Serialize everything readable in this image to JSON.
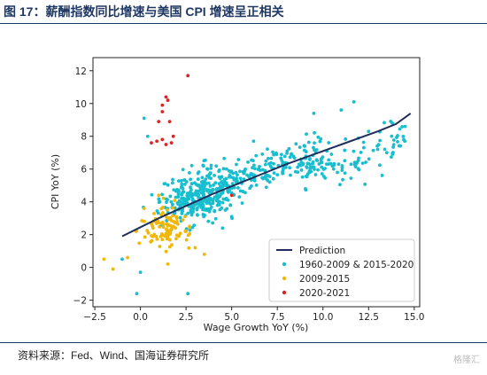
{
  "figure": {
    "title": "图 17：薪酬指数同比增速与美国 CPI 增速呈正相关",
    "source": "资料来源：Fed、Wind、国海证券研究所",
    "watermark": "格隆汇"
  },
  "chart_data": {
    "type": "scatter",
    "xlabel": "Wage Growth YoY (%)",
    "ylabel": "CPI YoY (%)",
    "xlim": [
      -2.6,
      15.3
    ],
    "ylim": [
      -2.4,
      12.8
    ],
    "xticks": [
      "−2.5",
      "0.0",
      "2.5",
      "5.0",
      "7.5",
      "10.0",
      "12.5",
      "15.0"
    ],
    "yticks": [
      "−2",
      "0",
      "2",
      "4",
      "6",
      "8",
      "10",
      "12"
    ],
    "grid": false,
    "legend_position": "lower-right",
    "prediction": {
      "name": "Prediction",
      "color": "#1f2e5a",
      "x": [
        -1.0,
        0.0,
        1.0,
        2.0,
        3.0,
        4.0,
        5.0,
        6.0,
        7.0,
        8.0,
        9.0,
        10.0,
        11.0,
        12.0,
        13.0,
        14.0,
        14.8
      ],
      "y": [
        1.9,
        2.45,
        3.0,
        3.5,
        4.0,
        4.5,
        4.95,
        5.4,
        5.85,
        6.3,
        6.7,
        7.1,
        7.5,
        7.9,
        8.3,
        8.75,
        9.4
      ]
    },
    "series": [
      {
        "name": "1960-2009 & 2015-2020",
        "color": "#17becf",
        "count": 620,
        "region_points": [
          [
            0.2,
            9.1
          ],
          [
            0.4,
            8.0
          ],
          [
            1.3,
            5.1
          ],
          [
            2.6,
            -1.6
          ],
          [
            -0.2,
            -1.6
          ],
          [
            0.0,
            -0.3
          ],
          [
            -1.0,
            0.5
          ],
          [
            5.0,
            3.1
          ],
          [
            6.2,
            7.7
          ],
          [
            9.5,
            9.4
          ],
          [
            10.2,
            6.3
          ],
          [
            11.0,
            9.6
          ],
          [
            11.7,
            10.1
          ],
          [
            12.5,
            8.3
          ],
          [
            13.8,
            8.8
          ],
          [
            14.5,
            8.6
          ],
          [
            13.0,
            7.2
          ],
          [
            9.0,
            7.4
          ],
          [
            7.8,
            6.4
          ],
          [
            4.5,
            2.4
          ]
        ]
      },
      {
        "name": "2009-2015",
        "color": "#f2b705",
        "count": 110,
        "region_points": [
          [
            -2.0,
            0.5
          ],
          [
            -0.7,
            0.6
          ],
          [
            -1.5,
            -0.1
          ],
          [
            0.2,
            3.6
          ],
          [
            1.2,
            1.7
          ],
          [
            1.5,
            0.2
          ],
          [
            2.5,
            2.2
          ],
          [
            3.0,
            1.2
          ],
          [
            1.0,
            4.4
          ],
          [
            2.0,
            3.0
          ],
          [
            3.5,
            0.8
          ],
          [
            1.8,
            2.5
          ]
        ]
      },
      {
        "name": "2020-2021",
        "color": "#d62728",
        "count": 14,
        "points": [
          [
            2.6,
            11.7
          ],
          [
            1.4,
            10.4
          ],
          [
            1.5,
            10.2
          ],
          [
            1.2,
            9.9
          ],
          [
            1.2,
            9.5
          ],
          [
            1.0,
            8.9
          ],
          [
            1.6,
            8.9
          ],
          [
            1.8,
            8.0
          ],
          [
            0.9,
            7.7
          ],
          [
            1.2,
            7.8
          ],
          [
            1.4,
            7.5
          ],
          [
            0.6,
            7.6
          ],
          [
            1.7,
            7.6
          ],
          [
            5.0,
            4.4
          ]
        ]
      }
    ]
  }
}
